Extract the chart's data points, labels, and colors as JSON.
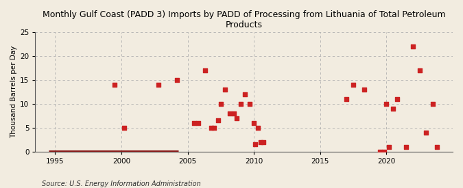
{
  "title": "Monthly Gulf Coast (PADD 3) Imports by PADD of Processing from Lithuania of Total Petroleum\nProducts",
  "ylabel": "Thousand Barrels per Day",
  "source": "Source: U.S. Energy Information Administration",
  "background_color": "#f2ece0",
  "plot_background_color": "#f2ece0",
  "marker_color": "#cc2222",
  "line_color": "#8b1a1a",
  "xlim": [
    1993.5,
    2025
  ],
  "ylim": [
    0,
    25
  ],
  "yticks": [
    0,
    5,
    10,
    15,
    20,
    25
  ],
  "xticks": [
    1995,
    2000,
    2005,
    2010,
    2015,
    2020
  ],
  "scatter_points": [
    [
      1999.5,
      14
    ],
    [
      2000.2,
      5
    ],
    [
      2002.8,
      14
    ],
    [
      2004.2,
      15
    ],
    [
      2005.5,
      6
    ],
    [
      2005.8,
      6
    ],
    [
      2006.3,
      17
    ],
    [
      2006.8,
      5
    ],
    [
      2007.0,
      5
    ],
    [
      2007.3,
      6.5
    ],
    [
      2007.5,
      10
    ],
    [
      2007.8,
      13
    ],
    [
      2008.2,
      8
    ],
    [
      2008.5,
      8
    ],
    [
      2008.7,
      7
    ],
    [
      2009.0,
      10
    ],
    [
      2009.3,
      12
    ],
    [
      2009.7,
      10
    ],
    [
      2010.0,
      6
    ],
    [
      2010.3,
      5
    ],
    [
      2010.1,
      1.5
    ],
    [
      2010.5,
      2
    ],
    [
      2010.7,
      2
    ],
    [
      2017.0,
      11
    ],
    [
      2017.5,
      14
    ],
    [
      2018.3,
      13
    ],
    [
      2019.5,
      0
    ],
    [
      2019.8,
      0
    ],
    [
      2020.0,
      10
    ],
    [
      2020.2,
      1
    ],
    [
      2020.5,
      9
    ],
    [
      2020.8,
      11
    ],
    [
      2021.5,
      1
    ],
    [
      2022.0,
      22
    ],
    [
      2022.5,
      17
    ],
    [
      2023.0,
      4
    ],
    [
      2023.5,
      10
    ],
    [
      2023.8,
      1
    ]
  ],
  "zero_line_start": 1994.5,
  "zero_line_end": 2004.3
}
